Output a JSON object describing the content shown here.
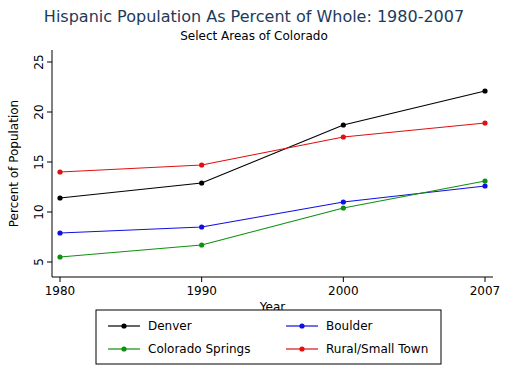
{
  "chart_data": {
    "type": "line",
    "title": "Hispanic Population As Percent of Whole: 1980-2007",
    "subtitle": "Select Areas of Colorado",
    "x_label": "Year",
    "y_label": "Percent of Population",
    "categories": [
      "1980",
      "1990",
      "2000",
      "2007"
    ],
    "series": [
      {
        "name": "Denver",
        "color": "#000000",
        "marker": "circle",
        "values": [
          11.4,
          12.9,
          18.7,
          22.1
        ]
      },
      {
        "name": "Boulder",
        "color": "#1010e0",
        "marker": "circle",
        "values": [
          7.9,
          8.5,
          11.0,
          12.6
        ]
      },
      {
        "name": "Colorado Springs",
        "color": "#109010",
        "marker": "circle",
        "values": [
          5.5,
          6.7,
          10.4,
          13.1
        ]
      },
      {
        "name": "Rural/Small Town",
        "color": "#e01010",
        "marker": "circle",
        "values": [
          14.0,
          14.7,
          17.5,
          18.9
        ]
      }
    ],
    "ylim": [
      3.5,
      26.2
    ],
    "yticks": [
      5,
      10,
      15,
      20,
      25
    ],
    "grid": false,
    "legend": "bottom"
  }
}
